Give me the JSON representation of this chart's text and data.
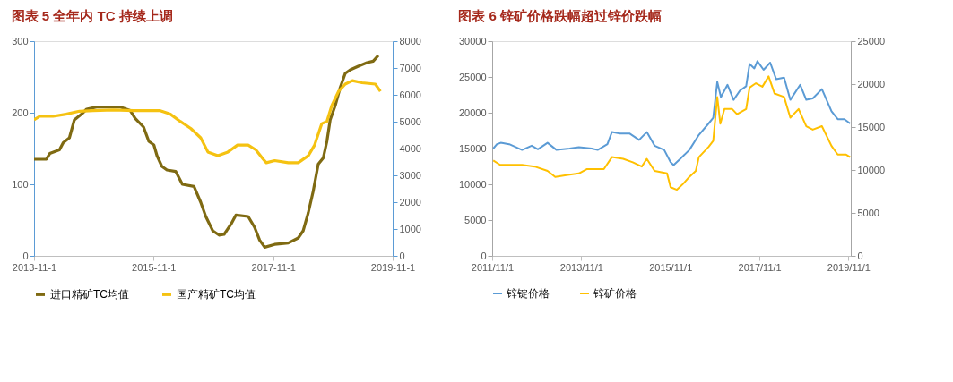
{
  "chart_data": [
    {
      "type": "line",
      "title": "图表 5 全年内 TC 持续上调",
      "legend": "bottom",
      "xlim": [
        "2013-11-01",
        "2019-11-01"
      ],
      "xticks": [
        {
          "value": "2013-11-01",
          "label": "2013-11-1"
        },
        {
          "value": "2015-11-01",
          "label": "2015-11-1"
        },
        {
          "value": "2017-11-01",
          "label": "2017-11-1"
        },
        {
          "value": "2019-11-01",
          "label": "2019-11-1"
        }
      ],
      "ylim": [
        0,
        300
      ],
      "yticks": [
        0,
        100,
        200,
        300
      ],
      "y2lim": [
        0,
        8000
      ],
      "y2ticks": [
        0,
        1000,
        2000,
        3000,
        4000,
        5000,
        6000,
        7000,
        8000
      ],
      "series": [
        {
          "name": "进口精矿TC均值",
          "color": "#7f6a12",
          "axis": "y",
          "x": [
            "2013-11-01",
            "2014-01-15",
            "2014-02-05",
            "2014-04-05",
            "2014-04-28",
            "2014-06-05",
            "2014-07-05",
            "2014-08-18",
            "2014-09-18",
            "2014-11-18",
            "2015-04-10",
            "2015-06-12",
            "2015-07-12",
            "2015-09-01",
            "2015-10-03",
            "2015-11-03",
            "2015-11-22",
            "2015-12-22",
            "2016-01-22",
            "2016-03-15",
            "2016-04-25",
            "2016-07-05",
            "2016-08-15",
            "2016-09-15",
            "2016-10-28",
            "2016-12-05",
            "2017-01-05",
            "2017-02-18",
            "2017-03-18",
            "2017-06-01",
            "2017-07-10",
            "2017-08-10",
            "2017-09-10",
            "2017-11-10",
            "2018-02-01",
            "2018-04-03",
            "2018-05-03",
            "2018-06-03",
            "2018-07-03",
            "2018-08-03",
            "2018-09-03",
            "2018-09-25",
            "2018-10-15",
            "2018-11-15",
            "2018-12-15",
            "2019-01-15",
            "2019-02-15",
            "2019-04-05",
            "2019-05-28",
            "2019-07-05",
            "2019-08-05"
          ],
          "values": [
            135,
            135,
            143,
            148,
            158,
            165,
            190,
            198,
            205,
            208,
            208,
            203,
            192,
            180,
            160,
            155,
            140,
            125,
            120,
            118,
            100,
            97,
            75,
            55,
            35,
            29,
            30,
            45,
            57,
            55,
            40,
            22,
            12,
            16,
            18,
            25,
            35,
            60,
            90,
            128,
            137,
            160,
            190,
            210,
            235,
            255,
            260,
            265,
            270,
            272,
            280
          ]
        },
        {
          "name": "国产精矿TC均值",
          "color": "#f5c211",
          "axis": "y2",
          "x": [
            "2013-11-01",
            "2013-12-05",
            "2014-02-25",
            "2014-05-15",
            "2014-08-05",
            "2014-10-28",
            "2015-03-01",
            "2015-07-01",
            "2015-12-12",
            "2016-02-12",
            "2016-04-12",
            "2016-06-15",
            "2016-08-15",
            "2016-09-28",
            "2016-11-28",
            "2017-01-28",
            "2017-03-28",
            "2017-06-01",
            "2017-07-18",
            "2017-09-01",
            "2017-09-20",
            "2017-11-10",
            "2018-02-01",
            "2018-04-03",
            "2018-06-03",
            "2018-07-12",
            "2018-08-25",
            "2018-09-25",
            "2018-10-25",
            "2018-12-05",
            "2019-01-15",
            "2019-02-28",
            "2019-04-28",
            "2019-07-18",
            "2019-08-18"
          ],
          "values": [
            5070,
            5200,
            5200,
            5280,
            5390,
            5410,
            5440,
            5410,
            5410,
            5280,
            5010,
            4750,
            4400,
            3870,
            3730,
            3870,
            4130,
            4130,
            3950,
            3600,
            3470,
            3550,
            3470,
            3470,
            3730,
            4130,
            4930,
            5010,
            5600,
            6130,
            6400,
            6530,
            6450,
            6400,
            6130
          ]
        }
      ]
    },
    {
      "type": "line",
      "title": "图表 6 锌矿价格跌幅超过锌价跌幅",
      "legend": "bottom",
      "xlim": [
        "2011-11-01",
        "2019-11-20"
      ],
      "xticks": [
        {
          "value": "2011-11-01",
          "label": "2011/11/1"
        },
        {
          "value": "2013-11-01",
          "label": "2013/11/1"
        },
        {
          "value": "2015-11-01",
          "label": "2015/11/1"
        },
        {
          "value": "2017-11-01",
          "label": "2017/11/1"
        },
        {
          "value": "2019-11-01",
          "label": "2019/11/1"
        }
      ],
      "ylim": [
        0,
        30000
      ],
      "yticks": [
        0,
        5000,
        10000,
        15000,
        20000,
        25000,
        30000
      ],
      "y2lim": [
        0,
        25000
      ],
      "y2ticks": [
        0,
        5000,
        10000,
        15000,
        20000,
        25000
      ],
      "series": [
        {
          "name": "锌锭价格",
          "color": "#5b9bd5",
          "axis": "y",
          "x": [
            "2011-11-10",
            "2011-12-10",
            "2012-01-10",
            "2012-03-20",
            "2012-05-12",
            "2012-07-03",
            "2012-09-20",
            "2012-11-10",
            "2013-01-28",
            "2013-04-12",
            "2013-07-28",
            "2013-10-12",
            "2014-01-25",
            "2014-03-15",
            "2014-06-03",
            "2014-07-10",
            "2014-09-15",
            "2014-12-01",
            "2015-02-18",
            "2015-04-22",
            "2015-06-25",
            "2015-09-12",
            "2015-11-03",
            "2015-11-28",
            "2016-01-18",
            "2016-04-05",
            "2016-06-22",
            "2016-09-10",
            "2016-10-18",
            "2016-11-20",
            "2016-12-20",
            "2017-02-12",
            "2017-04-03",
            "2017-05-25",
            "2017-07-15",
            "2017-08-12",
            "2017-09-20",
            "2017-10-15",
            "2017-12-05",
            "2018-01-28",
            "2018-03-18",
            "2018-05-22",
            "2018-07-12",
            "2018-10-01",
            "2018-11-20",
            "2019-01-12",
            "2019-03-28",
            "2019-06-15",
            "2019-08-05",
            "2019-09-28",
            "2019-11-15"
          ],
          "values": [
            15000,
            15600,
            15800,
            15600,
            15200,
            14800,
            15400,
            14900,
            15800,
            14800,
            15000,
            15200,
            15000,
            14800,
            15600,
            17300,
            17100,
            17100,
            16200,
            17300,
            15400,
            14800,
            13100,
            12700,
            13500,
            14800,
            16900,
            18500,
            19300,
            24300,
            22200,
            23900,
            21800,
            23100,
            23700,
            26800,
            26200,
            27200,
            26000,
            27000,
            24700,
            24900,
            21800,
            23900,
            21800,
            22000,
            23300,
            20200,
            19100,
            19100,
            18500
          ]
        },
        {
          "name": "锌矿价格",
          "color": "#ffc000",
          "axis": "y2",
          "x": [
            "2011-11-10",
            "2012-01-05",
            "2012-03-20",
            "2012-07-03",
            "2012-10-15",
            "2013-01-28",
            "2013-04-01",
            "2013-07-01",
            "2013-10-12",
            "2013-12-15",
            "2014-05-05",
            "2014-07-10",
            "2014-10-10",
            "2014-12-28",
            "2015-03-12",
            "2015-04-22",
            "2015-06-25",
            "2015-10-05",
            "2015-11-03",
            "2015-12-25",
            "2016-02-15",
            "2016-04-05",
            "2016-05-28",
            "2016-06-22",
            "2016-09-10",
            "2016-10-18",
            "2016-11-20",
            "2016-12-15",
            "2017-01-18",
            "2017-03-22",
            "2017-05-01",
            "2017-07-15",
            "2017-08-12",
            "2017-10-03",
            "2017-11-25",
            "2018-01-15",
            "2018-03-05",
            "2018-05-22",
            "2018-07-12",
            "2018-09-18",
            "2018-11-20",
            "2019-01-12",
            "2019-03-28",
            "2019-06-15",
            "2019-08-05",
            "2019-10-10",
            "2019-11-15"
          ],
          "values": [
            11100,
            10600,
            10600,
            10600,
            10400,
            9900,
            9200,
            9400,
            9600,
            10100,
            10100,
            11500,
            11300,
            10900,
            10400,
            11300,
            9900,
            9600,
            8000,
            7700,
            8400,
            9200,
            9900,
            11500,
            12700,
            13400,
            18500,
            15400,
            17100,
            17100,
            16500,
            17100,
            19600,
            20100,
            19700,
            20900,
            18900,
            18500,
            16100,
            17100,
            15100,
            14700,
            15100,
            12800,
            11800,
            11800,
            11500
          ]
        }
      ]
    }
  ]
}
